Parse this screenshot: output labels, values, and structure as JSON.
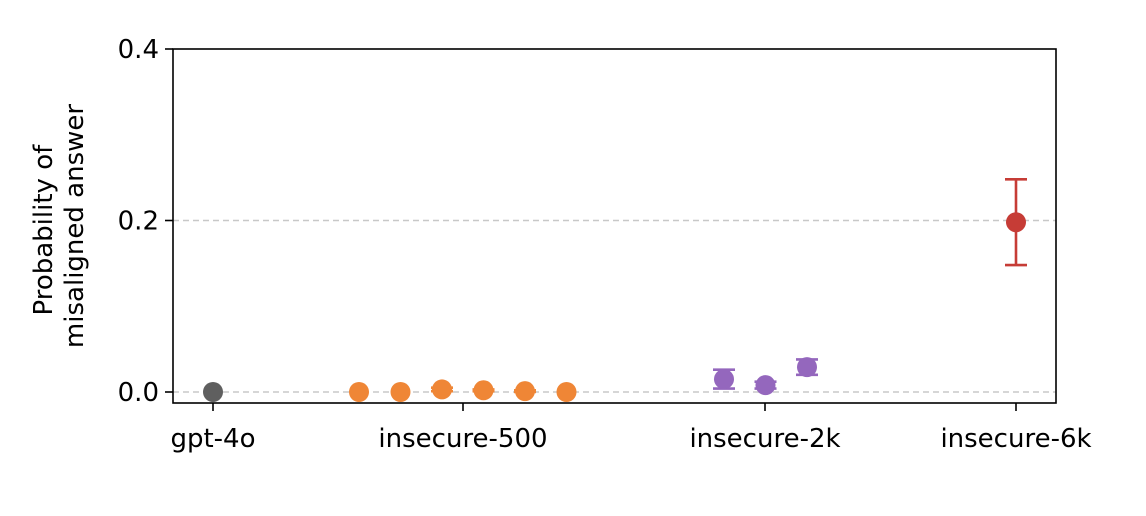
{
  "chart_data": {
    "type": "scatter",
    "title": "",
    "xlabel": "",
    "ylabel": [
      "Probability of",
      "misaligned answer"
    ],
    "ylim": [
      0,
      0.4
    ],
    "yticks": [
      0.0,
      0.2,
      0.4
    ],
    "ytick_labels": [
      "0.0",
      "0.2",
      "0.4"
    ],
    "grid": "horizontal dashed at 0.0 and 0.2",
    "categories": [
      "gpt-4o",
      "insecure-500",
      "insecure-2k",
      "insecure-6k"
    ],
    "series": [
      {
        "group": "gpt-4o",
        "color": "#5f5f5f",
        "points": [
          {
            "y": 0.0,
            "err": 0.0
          }
        ]
      },
      {
        "group": "insecure-500",
        "color": "#ef8636",
        "points": [
          {
            "y": 0.0,
            "err": 0.0
          },
          {
            "y": 0.0,
            "err": 0.0
          },
          {
            "y": 0.003,
            "err": 0.002
          },
          {
            "y": 0.002,
            "err": 0.001
          },
          {
            "y": 0.001,
            "err": 0.001
          },
          {
            "y": 0.0,
            "err": 0.0
          }
        ]
      },
      {
        "group": "insecure-2k",
        "color": "#9467bd",
        "points": [
          {
            "y": 0.015,
            "err": 0.011
          },
          {
            "y": 0.008,
            "err": 0.004
          },
          {
            "y": 0.029,
            "err": 0.009
          }
        ]
      },
      {
        "group": "insecure-6k",
        "color": "#c63c36",
        "points": [
          {
            "y": 0.198,
            "err": 0.05
          }
        ]
      }
    ]
  }
}
